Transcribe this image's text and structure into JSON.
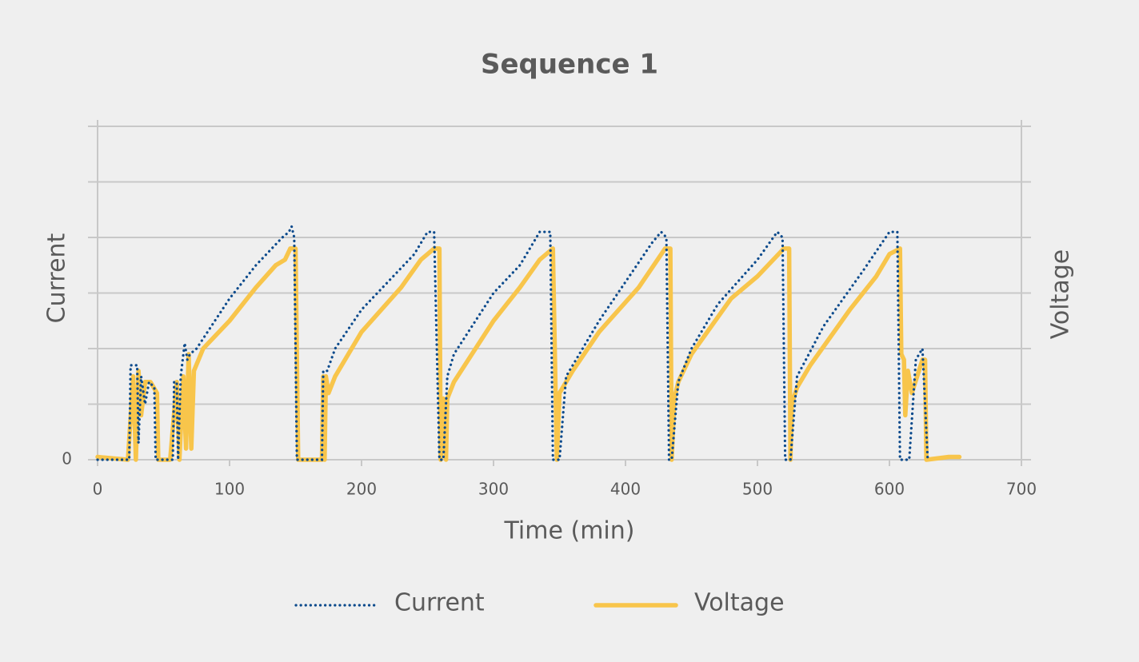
{
  "chart_data": {
    "type": "line",
    "title": "Sequence 1",
    "x_label": "Time (min)",
    "y_label": "Current",
    "y2_label": "Voltage",
    "xlim": [
      0,
      700
    ],
    "xticks": [
      0,
      100,
      200,
      300,
      400,
      500,
      600,
      700
    ],
    "ylim": [
      0,
      6
    ],
    "yticks": [
      0
    ],
    "ygrid": [
      0,
      1,
      2,
      3,
      4,
      5,
      6
    ],
    "grid": true,
    "legend": "bottom",
    "series": [
      {
        "name": "Current",
        "color": "#0b4a8c",
        "style": "dotted",
        "x": [
          0,
          24,
          25,
          30,
          31,
          33,
          36,
          39,
          43,
          44,
          57,
          58,
          60,
          61,
          63,
          66,
          68,
          70,
          75,
          100,
          120,
          140,
          145,
          147,
          149,
          151,
          170,
          171,
          174,
          180,
          200,
          220,
          240,
          250,
          255,
          259,
          262,
          265,
          270,
          300,
          320,
          335,
          343,
          345,
          350,
          355,
          380,
          400,
          420,
          427,
          431,
          433,
          435,
          440,
          450,
          470,
          500,
          515,
          519,
          521,
          525,
          530,
          550,
          580,
          600,
          606,
          608,
          615,
          620,
          625,
          629
        ],
        "values": [
          0,
          0,
          1.7,
          1.7,
          0.3,
          1.5,
          1.0,
          1.4,
          1.3,
          0,
          0,
          1.4,
          1.4,
          0,
          1.5,
          2.1,
          1.8,
          1.9,
          2.0,
          2.9,
          3.5,
          4.0,
          4.1,
          4.2,
          4.0,
          0,
          0,
          1.6,
          1.6,
          2.0,
          2.7,
          3.2,
          3.7,
          4.1,
          4.1,
          0,
          0,
          1.5,
          1.9,
          3.0,
          3.5,
          4.1,
          4.1,
          0,
          0,
          1.5,
          2.5,
          3.2,
          3.9,
          4.1,
          4.0,
          0,
          0,
          1.4,
          2.0,
          2.8,
          3.6,
          4.1,
          4.0,
          0,
          0,
          1.5,
          2.4,
          3.4,
          4.1,
          4.1,
          0,
          0,
          1.8,
          2.0,
          0
        ]
      },
      {
        "name": "Voltage",
        "color": "#f8c54b",
        "style": "solid",
        "x": [
          0,
          23,
          27,
          29,
          31,
          33,
          36,
          40,
          45,
          46,
          55,
          60,
          62,
          65,
          67,
          69,
          71,
          73,
          80,
          100,
          120,
          135,
          142,
          146,
          150,
          152,
          170,
          171,
          172,
          173,
          175,
          180,
          200,
          230,
          245,
          255,
          259,
          260,
          262,
          264,
          265,
          270,
          300,
          320,
          335,
          345,
          348,
          350,
          360,
          380,
          410,
          430,
          434,
          435,
          437,
          440,
          450,
          480,
          500,
          520,
          524,
          525,
          526,
          530,
          540,
          570,
          590,
          600,
          608,
          609,
          611,
          612,
          614,
          617,
          625,
          627,
          628,
          645,
          653
        ],
        "values": [
          0.05,
          0,
          1.5,
          0,
          1.6,
          0.8,
          1.4,
          1.4,
          1.2,
          0,
          0,
          1.4,
          0,
          1.5,
          0.2,
          1.9,
          0.2,
          1.6,
          2.0,
          2.5,
          3.1,
          3.5,
          3.6,
          3.8,
          3.8,
          0,
          0,
          1.5,
          0,
          1.5,
          1.2,
          1.5,
          2.3,
          3.1,
          3.6,
          3.8,
          3.8,
          0,
          1.1,
          0,
          1.1,
          1.4,
          2.5,
          3.1,
          3.6,
          3.8,
          0,
          1.2,
          1.6,
          2.3,
          3.1,
          3.8,
          3.8,
          0,
          1.1,
          1.4,
          1.9,
          2.9,
          3.3,
          3.8,
          3.8,
          0,
          1.0,
          1.3,
          1.7,
          2.7,
          3.3,
          3.7,
          3.8,
          1.9,
          1.8,
          0.8,
          1.6,
          1.2,
          1.8,
          1.8,
          0,
          0.05,
          0.05
        ]
      }
    ]
  }
}
